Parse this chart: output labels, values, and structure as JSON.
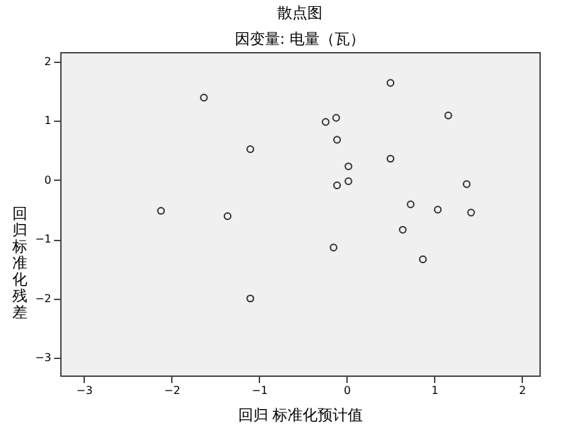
{
  "chart_data": {
    "type": "scatter",
    "title": "散点图",
    "subtitle": "因变量: 电量（瓦）",
    "xlabel": "回归 标准化预计值",
    "ylabel": "回归标准化残差",
    "x": [
      -1.63,
      -1.1,
      -2.12,
      -1.36,
      -1.1,
      -0.24,
      -0.12,
      -0.11,
      0.02,
      0.02,
      -0.11,
      0.5,
      0.5,
      1.16,
      1.37,
      0.73,
      1.04,
      1.42,
      0.64,
      0.87,
      -0.15
    ],
    "values": [
      1.39,
      0.52,
      -0.52,
      -0.61,
      -2.0,
      0.98,
      1.05,
      0.68,
      0.23,
      -0.02,
      -0.09,
      1.64,
      0.36,
      1.09,
      -0.07,
      -0.41,
      -0.5,
      -0.55,
      -0.84,
      -1.34,
      -1.14
    ],
    "color": "#333333",
    "marker": "circle",
    "xlim": [
      -3.27,
      2.2
    ],
    "xticks": [
      -3,
      -2,
      -1,
      0,
      1,
      2
    ],
    "ylim": [
      -3.3,
      2.16
    ],
    "yticks": [
      -3,
      -2,
      -1,
      0,
      1,
      2
    ],
    "grid": false
  }
}
